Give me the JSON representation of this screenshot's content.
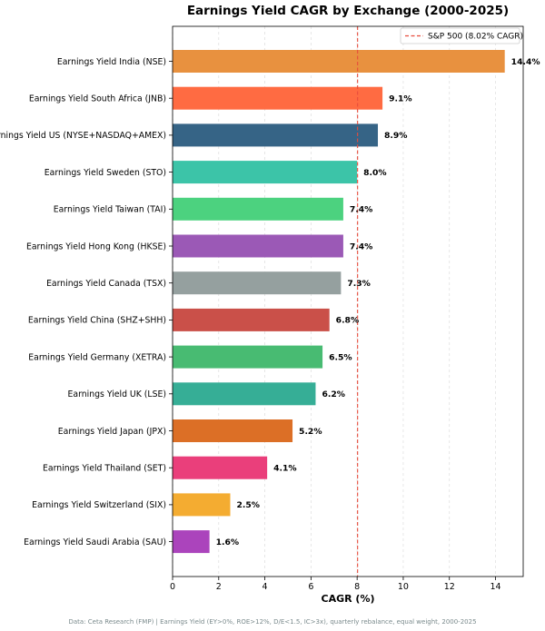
{
  "chart_data": {
    "type": "bar",
    "orientation": "horizontal",
    "title": "Earnings Yield CAGR by Exchange (2000-2025)",
    "xlabel": "CAGR (%)",
    "ylabel": "",
    "xlim": [
      0,
      15.2
    ],
    "xticks": [
      0,
      2,
      4,
      6,
      8,
      10,
      12,
      14
    ],
    "grid": "vertical dashed",
    "legend_position": "top-right",
    "reference_line": {
      "value": 8.02,
      "label": "S&P 500 (8.02% CAGR)",
      "color": "#e74c3c"
    },
    "categories": [
      "Earnings Yield India (NSE)",
      "Earnings Yield South Africa (JNB)",
      "Earnings Yield US (NYSE+NASDAQ+AMEX)",
      "Earnings Yield Sweden (STO)",
      "Earnings Yield Taiwan (TAI)",
      "Earnings Yield Hong Kong (HKSE)",
      "Earnings Yield Canada (TSX)",
      "Earnings Yield China (SHZ+SHH)",
      "Earnings Yield Germany (XETRA)",
      "Earnings Yield UK (LSE)",
      "Earnings Yield Japan (JPX)",
      "Earnings Yield Thailand (SET)",
      "Earnings Yield Switzerland (SIX)",
      "Earnings Yield Saudi Arabia (SAU)"
    ],
    "values": [
      14.4,
      9.1,
      8.9,
      8.0,
      7.4,
      7.4,
      7.3,
      6.8,
      6.5,
      6.2,
      5.2,
      4.1,
      2.5,
      1.6
    ],
    "value_labels": [
      "14.4%",
      "9.1%",
      "8.9%",
      "8.0%",
      "7.4%",
      "7.4%",
      "7.3%",
      "6.8%",
      "6.5%",
      "6.2%",
      "5.2%",
      "4.1%",
      "2.5%",
      "1.6%"
    ],
    "colors": [
      "#e8913f",
      "#ff6b42",
      "#366486",
      "#3cc4a8",
      "#4cd27f",
      "#9b59b6",
      "#95a09f",
      "#ca5049",
      "#48bb72",
      "#36ae96",
      "#dc6f26",
      "#ea3f7b",
      "#f4ac31",
      "#ab44bc"
    ],
    "footnote": "Data: Ceta Research (FMP) | Earnings Yield (EY>0%, ROE>12%, D/E<1.5, IC>3x), quarterly rebalance, equal weight, 2000-2025"
  }
}
